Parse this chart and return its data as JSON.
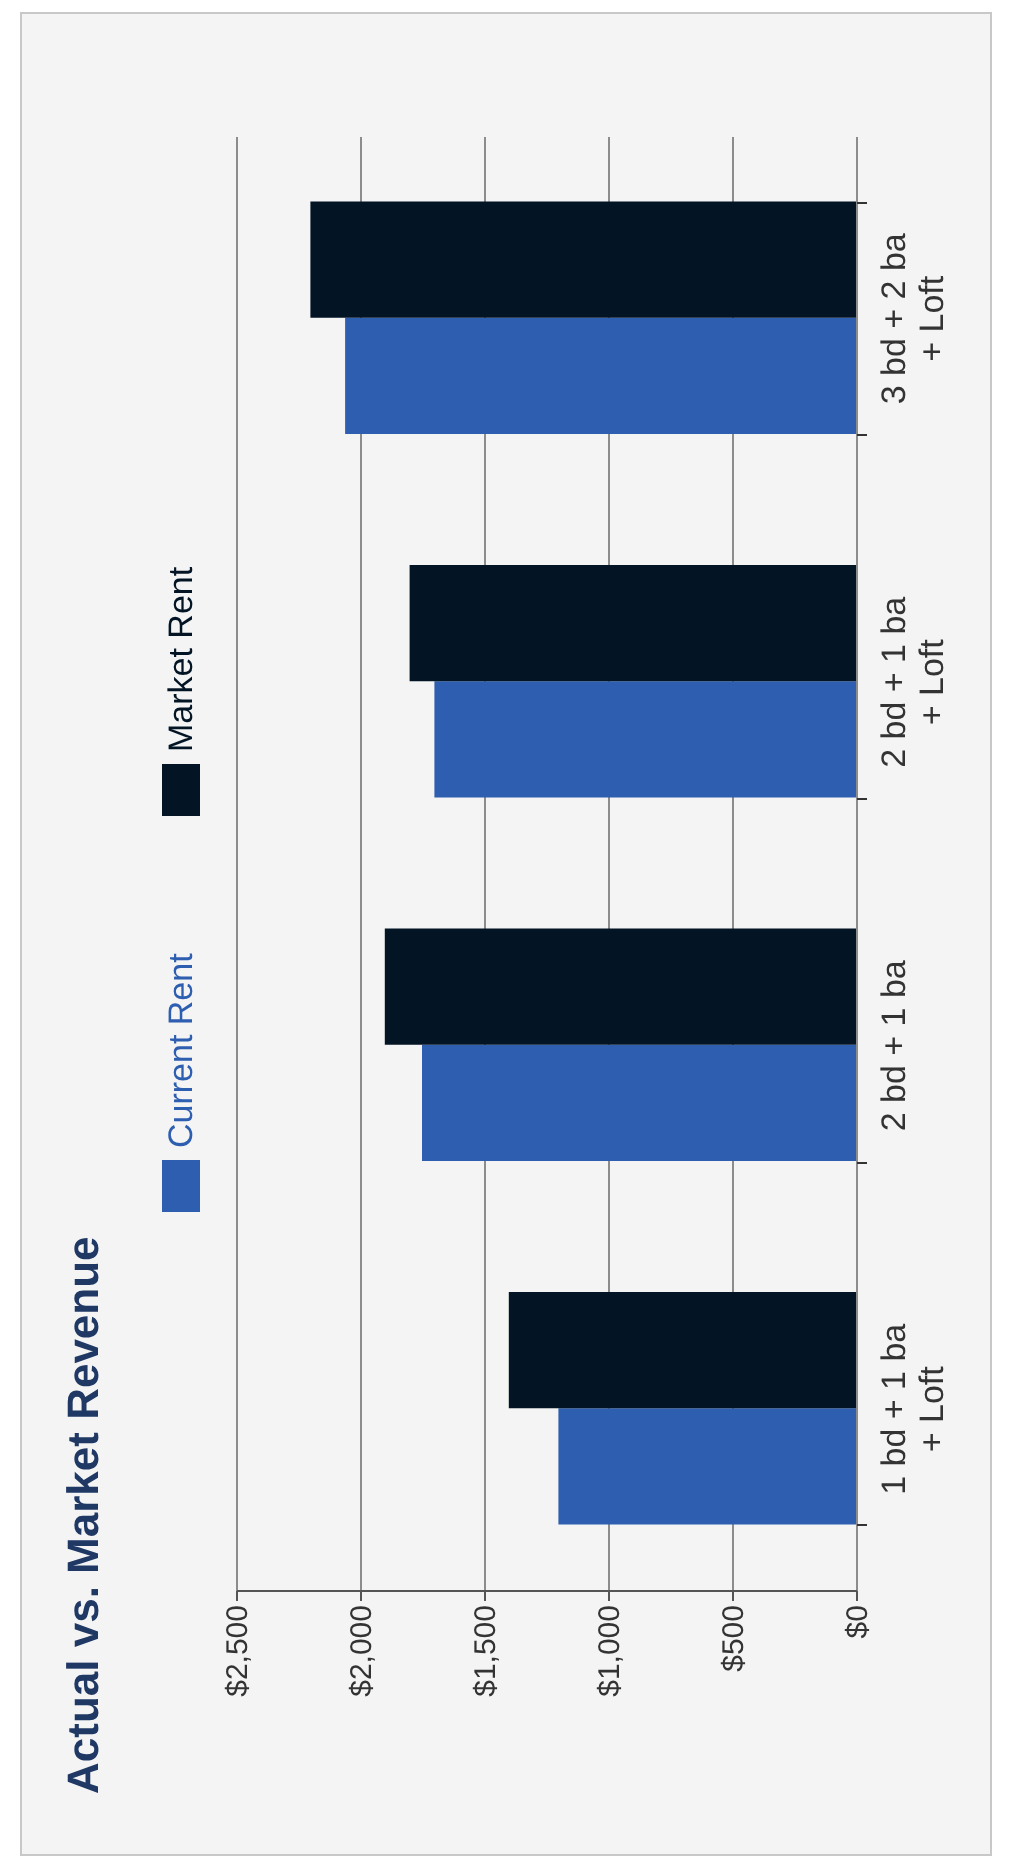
{
  "chart_data": {
    "type": "bar",
    "orientation": "horizontal",
    "title": "Actual vs. Market Revenue",
    "categories": [
      "3 bd + 2 ba + Loft",
      "2 bd + 1 ba + Loft",
      "2 bd + 1 ba",
      "1 bd + 1 ba + Loft"
    ],
    "series": [
      {
        "name": "Current Rent",
        "color": "#2e5eb0",
        "values": [
          2060,
          1700,
          1750,
          1200
        ]
      },
      {
        "name": "Market Rent",
        "color": "#031525",
        "values": [
          2200,
          1800,
          1900,
          1400
        ]
      }
    ],
    "xlim": [
      2500,
      0
    ],
    "xticks": [
      {
        "value": 2500,
        "label": "$2,500"
      },
      {
        "value": 2000,
        "label": "$2,000"
      },
      {
        "value": 1500,
        "label": "$1,500"
      },
      {
        "value": 1000,
        "label": "$1,000"
      },
      {
        "value": 500,
        "label": "$500"
      },
      {
        "value": 0,
        "label": "$0"
      }
    ],
    "grid": "x",
    "legend": "left"
  }
}
